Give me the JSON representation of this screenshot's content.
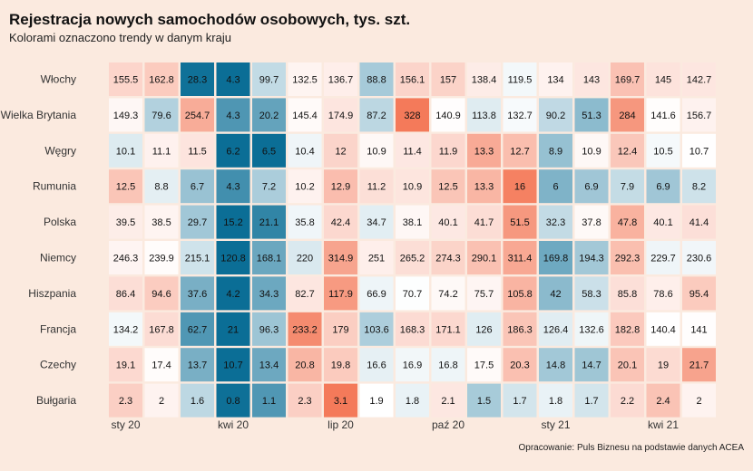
{
  "chart_data": {
    "type": "heatmap",
    "title": "Rejestracja nowych samochodów osobowych, tys. szt.",
    "subtitle": "Kolorami oznaczono trendy w danym kraju",
    "caption": "Opracowanie: Puls Biznesu na podstawie danych ACEA",
    "rows": [
      "Włochy",
      "Wielka Brytania",
      "Węgry",
      "Rumunia",
      "Polska",
      "Niemcy",
      "Hiszpania",
      "Francja",
      "Czechy",
      "Bułgaria"
    ],
    "columns": 17,
    "x_ticks": [
      {
        "label": "sty 20",
        "col": 0
      },
      {
        "label": "kwi 20",
        "col": 3
      },
      {
        "label": "lip 20",
        "col": 6
      },
      {
        "label": "paź 20",
        "col": 9
      },
      {
        "label": "sty 21",
        "col": 12
      },
      {
        "label": "kwi 21",
        "col": 15
      }
    ],
    "values": [
      [
        "155.5",
        "162.8",
        "28.3",
        "4.3",
        "99.7",
        "132.5",
        "136.7",
        "88.8",
        "156.1",
        "157",
        "138.4",
        "119.5",
        "134",
        "143",
        "169.7",
        "145",
        "142.7"
      ],
      [
        "149.3",
        "79.6",
        "254.7",
        "4.3",
        "20.2",
        "145.4",
        "174.9",
        "87.2",
        "328",
        "140.9",
        "113.8",
        "132.7",
        "90.2",
        "51.3",
        "284",
        "141.6",
        "156.7"
      ],
      [
        "10.1",
        "11.1",
        "11.5",
        "6.2",
        "6.5",
        "10.4",
        "12",
        "10.9",
        "11.4",
        "11.9",
        "13.3",
        "12.7",
        "8.9",
        "10.9",
        "12.4",
        "10.5",
        "10.7"
      ],
      [
        "12.5",
        "8.8",
        "6.7",
        "4.3",
        "7.2",
        "10.2",
        "12.9",
        "11.2",
        "10.9",
        "12.5",
        "13.3",
        "16",
        "6",
        "6.9",
        "7.9",
        "6.9",
        "8.2"
      ],
      [
        "39.5",
        "38.5",
        "29.7",
        "15.2",
        "21.1",
        "35.8",
        "42.4",
        "34.7",
        "38.1",
        "40.1",
        "41.7",
        "51.5",
        "32.3",
        "37.8",
        "47.8",
        "40.1",
        "41.4"
      ],
      [
        "246.3",
        "239.9",
        "215.1",
        "120.8",
        "168.1",
        "220",
        "314.9",
        "251",
        "265.2",
        "274.3",
        "290.1",
        "311.4",
        "169.8",
        "194.3",
        "292.3",
        "229.7",
        "230.6"
      ],
      [
        "86.4",
        "94.6",
        "37.6",
        "4.2",
        "34.3",
        "82.7",
        "117.9",
        "66.9",
        "70.7",
        "74.2",
        "75.7",
        "105.8",
        "42",
        "58.3",
        "85.8",
        "78.6",
        "95.4"
      ],
      [
        "134.2",
        "167.8",
        "62.7",
        "21",
        "96.3",
        "233.2",
        "179",
        "103.6",
        "168.3",
        "171.1",
        "126",
        "186.3",
        "126.4",
        "132.6",
        "182.8",
        "140.4",
        "141"
      ],
      [
        "19.1",
        "17.4",
        "13.7",
        "10.7",
        "13.4",
        "20.8",
        "19.8",
        "16.6",
        "16.9",
        "16.8",
        "17.5",
        "20.3",
        "14.8",
        "14.7",
        "20.1",
        "19",
        "21.7"
      ],
      [
        "2.3",
        "2",
        "1.6",
        "0.8",
        "1.1",
        "2.3",
        "3.1",
        "1.9",
        "1.8",
        "2.1",
        "1.5",
        "1.7",
        "1.8",
        "1.7",
        "2.2",
        "2.4",
        "2"
      ]
    ],
    "colors": {
      "low": "#0b6e96",
      "mid": "#ffffff",
      "high": "#f47a5a",
      "background": "#fbeadf"
    }
  }
}
